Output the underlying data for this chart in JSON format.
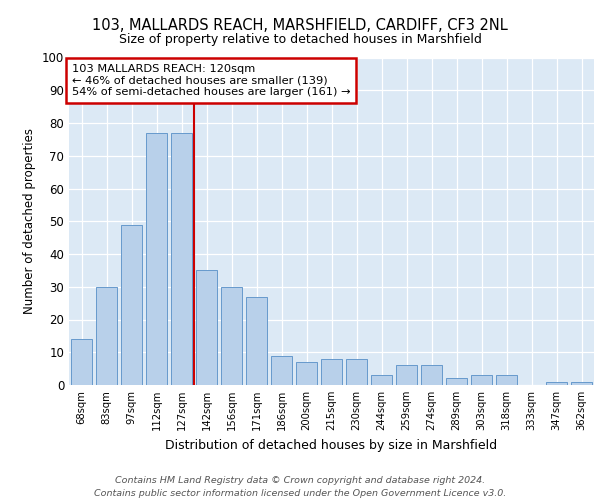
{
  "title1": "103, MALLARDS REACH, MARSHFIELD, CARDIFF, CF3 2NL",
  "title2": "Size of property relative to detached houses in Marshfield",
  "xlabel": "Distribution of detached houses by size in Marshfield",
  "ylabel": "Number of detached properties",
  "categories": [
    "68sqm",
    "83sqm",
    "97sqm",
    "112sqm",
    "127sqm",
    "142sqm",
    "156sqm",
    "171sqm",
    "186sqm",
    "200sqm",
    "215sqm",
    "230sqm",
    "244sqm",
    "259sqm",
    "274sqm",
    "289sqm",
    "303sqm",
    "318sqm",
    "333sqm",
    "347sqm",
    "362sqm"
  ],
  "values": [
    14,
    30,
    49,
    77,
    77,
    35,
    30,
    27,
    9,
    7,
    8,
    8,
    3,
    6,
    6,
    2,
    3,
    3,
    0,
    1,
    1
  ],
  "bar_color": "#b8d0ea",
  "bar_edge_color": "#6699cc",
  "background_color": "#dce9f5",
  "vline_x": 4.5,
  "vline_color": "#cc0000",
  "annotation_text": "103 MALLARDS REACH: 120sqm\n← 46% of detached houses are smaller (139)\n54% of semi-detached houses are larger (161) →",
  "annotation_box_color": "#ffffff",
  "annotation_box_edge": "#cc0000",
  "footer": "Contains HM Land Registry data © Crown copyright and database right 2024.\nContains public sector information licensed under the Open Government Licence v3.0.",
  "ylim": [
    0,
    100
  ],
  "yticks": [
    0,
    10,
    20,
    30,
    40,
    50,
    60,
    70,
    80,
    90,
    100
  ]
}
